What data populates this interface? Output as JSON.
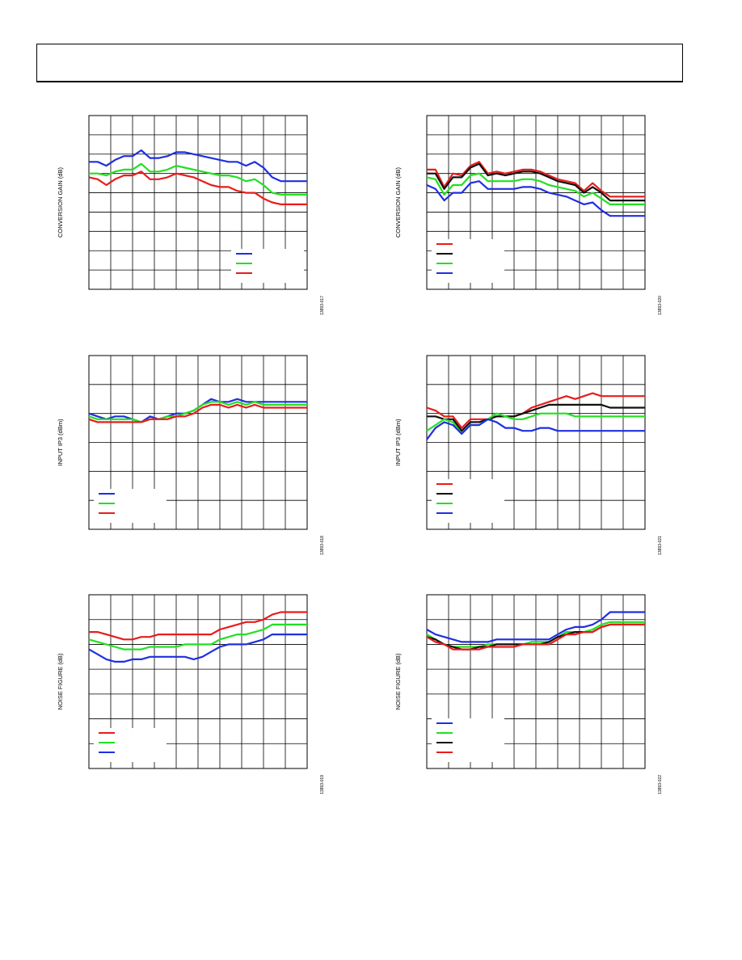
{
  "page": {
    "header_title": ""
  },
  "chart_data": [
    {
      "type": "line",
      "ylabel": "CONVERSION GAIN (dB)",
      "figure_id": "13893-017",
      "grid": true,
      "legend_position": "bottom-right",
      "x": [
        0,
        2,
        4,
        6,
        8,
        10,
        12,
        14,
        16,
        18,
        20,
        22,
        24,
        26,
        28,
        30,
        32,
        34,
        36,
        38,
        40,
        42,
        44,
        46,
        48,
        50
      ],
      "ylim": [
        0,
        9
      ],
      "series": [
        {
          "color": "#1f2fe0",
          "values": [
            6.6,
            6.6,
            6.4,
            6.7,
            6.9,
            6.9,
            7.2,
            6.8,
            6.8,
            6.9,
            7.1,
            7.1,
            7.0,
            6.9,
            6.8,
            6.7,
            6.6,
            6.6,
            6.4,
            6.6,
            6.3,
            5.8,
            5.6,
            5.6,
            5.6,
            5.6
          ]
        },
        {
          "color": "#22e022",
          "values": [
            6.0,
            6.0,
            5.9,
            6.1,
            6.2,
            6.2,
            6.5,
            6.1,
            6.1,
            6.2,
            6.4,
            6.3,
            6.2,
            6.1,
            6.0,
            5.9,
            5.9,
            5.8,
            5.6,
            5.7,
            5.4,
            5.0,
            4.9,
            4.9,
            4.9,
            4.9
          ]
        },
        {
          "color": "#e81c1c",
          "values": [
            5.8,
            5.7,
            5.4,
            5.7,
            5.9,
            5.9,
            6.1,
            5.7,
            5.7,
            5.8,
            6.0,
            5.9,
            5.8,
            5.6,
            5.4,
            5.3,
            5.3,
            5.1,
            5.0,
            5.0,
            4.7,
            4.5,
            4.4,
            4.4,
            4.4,
            4.4
          ]
        }
      ]
    },
    {
      "type": "line",
      "ylabel": "CONVERSION GAIN (dB)",
      "figure_id": "13893-020",
      "grid": true,
      "legend_position": "bottom-left",
      "x": [
        0,
        2,
        4,
        6,
        8,
        10,
        12,
        14,
        16,
        18,
        20,
        22,
        24,
        26,
        28,
        30,
        32,
        34,
        36,
        38,
        40,
        42,
        44,
        46,
        48,
        50
      ],
      "ylim": [
        0,
        9
      ],
      "series": [
        {
          "color": "#e81c1c",
          "values": [
            6.2,
            6.2,
            5.3,
            6.0,
            5.9,
            6.4,
            6.6,
            6.0,
            6.1,
            6.0,
            6.1,
            6.2,
            6.2,
            6.1,
            5.9,
            5.7,
            5.6,
            5.5,
            5.1,
            5.5,
            5.1,
            4.8,
            4.8,
            4.8,
            4.8,
            4.8
          ]
        },
        {
          "color": "#111111",
          "values": [
            6.0,
            6.0,
            5.2,
            5.8,
            5.8,
            6.3,
            6.5,
            5.9,
            6.0,
            5.9,
            6.0,
            6.1,
            6.1,
            6.0,
            5.8,
            5.6,
            5.5,
            5.4,
            5.0,
            5.3,
            5.0,
            4.6,
            4.6,
            4.6,
            4.6,
            4.6
          ]
        },
        {
          "color": "#22e022",
          "values": [
            5.8,
            5.7,
            4.9,
            5.4,
            5.4,
            5.9,
            6.0,
            5.6,
            5.6,
            5.6,
            5.6,
            5.7,
            5.7,
            5.6,
            5.4,
            5.3,
            5.2,
            5.1,
            4.8,
            5.0,
            4.7,
            4.4,
            4.4,
            4.4,
            4.4,
            4.4
          ]
        },
        {
          "color": "#1f2fe0",
          "values": [
            5.4,
            5.2,
            4.6,
            5.0,
            5.0,
            5.5,
            5.6,
            5.2,
            5.2,
            5.2,
            5.2,
            5.3,
            5.3,
            5.2,
            5.0,
            4.9,
            4.8,
            4.6,
            4.4,
            4.5,
            4.1,
            3.8,
            3.8,
            3.8,
            3.8,
            3.8
          ]
        }
      ]
    },
    {
      "type": "line",
      "ylabel": "INPUT IP3 (dBm)",
      "figure_id": "13893-018",
      "grid": true,
      "legend_position": "bottom-left",
      "x": [
        0,
        2,
        4,
        6,
        8,
        10,
        12,
        14,
        16,
        18,
        20,
        22,
        24,
        26,
        28,
        30,
        32,
        34,
        36,
        38,
        40,
        42,
        44,
        46,
        48,
        50
      ],
      "ylim": [
        0,
        6
      ],
      "series": [
        {
          "color": "#1f2fe0",
          "values": [
            4.0,
            3.9,
            3.8,
            3.9,
            3.9,
            3.8,
            3.7,
            3.9,
            3.8,
            3.9,
            4.0,
            4.0,
            4.1,
            4.3,
            4.5,
            4.4,
            4.4,
            4.5,
            4.4,
            4.4,
            4.4,
            4.4,
            4.4,
            4.4,
            4.4,
            4.4
          ]
        },
        {
          "color": "#22e022",
          "values": [
            3.9,
            3.8,
            3.8,
            3.8,
            3.8,
            3.8,
            3.7,
            3.8,
            3.8,
            3.9,
            3.9,
            4.0,
            4.1,
            4.3,
            4.4,
            4.4,
            4.3,
            4.4,
            4.3,
            4.4,
            4.3,
            4.3,
            4.3,
            4.3,
            4.3,
            4.3
          ]
        },
        {
          "color": "#e81c1c",
          "values": [
            3.8,
            3.7,
            3.7,
            3.7,
            3.7,
            3.7,
            3.7,
            3.8,
            3.8,
            3.8,
            3.9,
            3.9,
            4.0,
            4.2,
            4.3,
            4.3,
            4.2,
            4.3,
            4.2,
            4.3,
            4.2,
            4.2,
            4.2,
            4.2,
            4.2,
            4.2
          ]
        }
      ]
    },
    {
      "type": "line",
      "ylabel": "INPUT IP3 (dBm)",
      "figure_id": "13893-021",
      "grid": true,
      "legend_position": "bottom-left",
      "x": [
        0,
        2,
        4,
        6,
        8,
        10,
        12,
        14,
        16,
        18,
        20,
        22,
        24,
        26,
        28,
        30,
        32,
        34,
        36,
        38,
        40,
        42,
        44,
        46,
        48,
        50
      ],
      "ylim": [
        0,
        6
      ],
      "series": [
        {
          "color": "#e81c1c",
          "values": [
            4.2,
            4.1,
            3.9,
            3.9,
            3.5,
            3.8,
            3.8,
            3.8,
            3.9,
            3.9,
            3.9,
            4.0,
            4.2,
            4.3,
            4.4,
            4.5,
            4.6,
            4.5,
            4.6,
            4.7,
            4.6,
            4.6,
            4.6,
            4.6,
            4.6,
            4.6
          ]
        },
        {
          "color": "#111111",
          "values": [
            3.9,
            3.9,
            3.8,
            3.8,
            3.4,
            3.7,
            3.7,
            3.8,
            3.9,
            3.9,
            3.9,
            4.0,
            4.1,
            4.2,
            4.3,
            4.3,
            4.3,
            4.3,
            4.3,
            4.3,
            4.3,
            4.2,
            4.2,
            4.2,
            4.2,
            4.2
          ]
        },
        {
          "color": "#22e022",
          "values": [
            3.4,
            3.6,
            3.8,
            3.7,
            3.3,
            3.6,
            3.6,
            3.8,
            4.0,
            3.9,
            3.8,
            3.8,
            3.9,
            4.0,
            4.0,
            4.0,
            4.0,
            3.9,
            3.9,
            3.9,
            3.9,
            3.9,
            3.9,
            3.9,
            3.9,
            3.9
          ]
        },
        {
          "color": "#1f2fe0",
          "values": [
            3.1,
            3.5,
            3.7,
            3.6,
            3.3,
            3.6,
            3.6,
            3.8,
            3.7,
            3.5,
            3.5,
            3.4,
            3.4,
            3.5,
            3.5,
            3.4,
            3.4,
            3.4,
            3.4,
            3.4,
            3.4,
            3.4,
            3.4,
            3.4,
            3.4,
            3.4
          ]
        }
      ]
    },
    {
      "type": "line",
      "ylabel": "NOISE FIGURE (dB)",
      "figure_id": "13893-019",
      "grid": true,
      "legend_position": "bottom-left",
      "x": [
        0,
        2,
        4,
        6,
        8,
        10,
        12,
        14,
        16,
        18,
        20,
        22,
        24,
        26,
        28,
        30,
        32,
        34,
        36,
        38,
        40,
        42,
        44,
        46,
        48,
        50
      ],
      "ylim": [
        0,
        7
      ],
      "series": [
        {
          "color": "#e81c1c",
          "values": [
            5.5,
            5.5,
            5.4,
            5.3,
            5.2,
            5.2,
            5.3,
            5.3,
            5.4,
            5.4,
            5.4,
            5.4,
            5.4,
            5.4,
            5.4,
            5.6,
            5.7,
            5.8,
            5.9,
            5.9,
            6.0,
            6.2,
            6.3,
            6.3,
            6.3,
            6.3
          ]
        },
        {
          "color": "#22e022",
          "values": [
            5.2,
            5.1,
            5.0,
            4.9,
            4.8,
            4.8,
            4.8,
            4.9,
            4.9,
            4.9,
            4.9,
            5.0,
            5.0,
            5.0,
            5.0,
            5.2,
            5.3,
            5.4,
            5.4,
            5.5,
            5.6,
            5.8,
            5.8,
            5.8,
            5.8,
            5.8
          ]
        },
        {
          "color": "#1f2fe0",
          "values": [
            4.8,
            4.6,
            4.4,
            4.3,
            4.3,
            4.4,
            4.4,
            4.5,
            4.5,
            4.5,
            4.5,
            4.5,
            4.4,
            4.5,
            4.7,
            4.9,
            5.0,
            5.0,
            5.0,
            5.1,
            5.2,
            5.4,
            5.4,
            5.4,
            5.4,
            5.4
          ]
        }
      ]
    },
    {
      "type": "line",
      "ylabel": "NOISE FIGURE (dB)",
      "figure_id": "13893-022",
      "grid": true,
      "legend_position": "bottom-left",
      "x": [
        0,
        2,
        4,
        6,
        8,
        10,
        12,
        14,
        16,
        18,
        20,
        22,
        24,
        26,
        28,
        30,
        32,
        34,
        36,
        38,
        40,
        42,
        44,
        46,
        48,
        50
      ],
      "ylim": [
        0,
        7
      ],
      "series": [
        {
          "color": "#1f2fe0",
          "values": [
            5.6,
            5.4,
            5.3,
            5.2,
            5.1,
            5.1,
            5.1,
            5.1,
            5.2,
            5.2,
            5.2,
            5.2,
            5.2,
            5.2,
            5.2,
            5.4,
            5.6,
            5.7,
            5.7,
            5.8,
            6.0,
            6.3,
            6.3,
            6.3,
            6.3,
            6.3
          ]
        },
        {
          "color": "#22e022",
          "values": [
            5.4,
            5.2,
            5.0,
            4.9,
            4.9,
            4.9,
            4.9,
            5.0,
            5.0,
            5.0,
            5.0,
            5.0,
            5.1,
            5.1,
            5.1,
            5.3,
            5.5,
            5.5,
            5.5,
            5.6,
            5.8,
            5.9,
            5.9,
            5.9,
            5.9,
            5.9
          ]
        },
        {
          "color": "#111111",
          "values": [
            5.3,
            5.2,
            5.0,
            4.9,
            4.8,
            4.8,
            4.9,
            4.9,
            5.0,
            5.0,
            5.0,
            5.0,
            5.0,
            5.0,
            5.1,
            5.3,
            5.4,
            5.5,
            5.5,
            5.5,
            5.7,
            5.8,
            5.8,
            5.8,
            5.8,
            5.8
          ]
        },
        {
          "color": "#e81c1c",
          "values": [
            5.3,
            5.1,
            5.0,
            4.8,
            4.8,
            4.8,
            4.8,
            4.9,
            4.9,
            4.9,
            4.9,
            5.0,
            5.0,
            5.0,
            5.0,
            5.2,
            5.4,
            5.4,
            5.5,
            5.5,
            5.7,
            5.8,
            5.8,
            5.8,
            5.8,
            5.8
          ]
        }
      ]
    }
  ]
}
